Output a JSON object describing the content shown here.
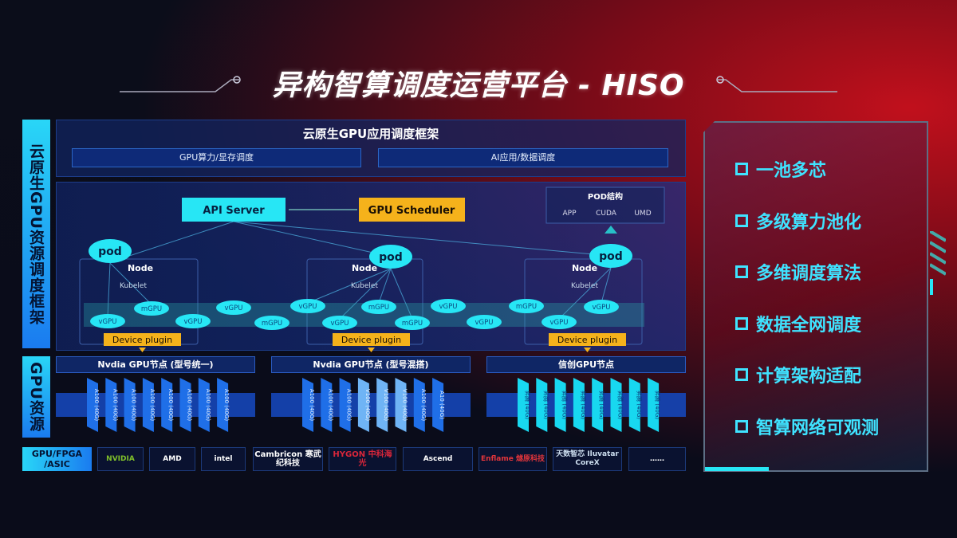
{
  "title": "异构智算调度运营平台 - HISO",
  "left_labels": {
    "framework": "云原生GPU资源调度框架",
    "resources": "GPU资源",
    "chips": "GPU/FPGA /ASIC"
  },
  "app_framework": {
    "title": "云原生GPU应用调度框架",
    "sub": [
      "GPU算力/显存调度",
      "AI应用/数据调度"
    ]
  },
  "diagram": {
    "api_server": "API Server",
    "gpu_scheduler": "GPU Scheduler",
    "pod_structure": {
      "title": "POD结构",
      "items": [
        "APP",
        "CUDA",
        "UMD"
      ]
    },
    "pod": "pod",
    "node": "Node",
    "kubelet": "Kubelet",
    "device_plugin": "Device plugin",
    "gpu_units": [
      "vGPU",
      "mGPU",
      "vGPU",
      "vGPU",
      "mGPU",
      "vGPU",
      "vGPU",
      "mGPU",
      "mGPU",
      "vGPU",
      "vGPU",
      "mGPU",
      "vGPU",
      "vGPU"
    ]
  },
  "gpu_nodes": [
    {
      "title": "Nvdia GPU节点 (型号统一)",
      "cards": [
        "A100 (40G)",
        "A100 (40G)",
        "A100 (40G)",
        "A100 (40G)",
        "A100 (40G)",
        "A100 (40G)",
        "A100 (40G)",
        "A100 (40G)"
      ],
      "color": "#1f6fe8"
    },
    {
      "title": "Nvdia GPU节点 (型号混搭)",
      "cards": [
        "A100 (40G)",
        "A100 (40G)",
        "A100 (40G)",
        "V100 (40G)",
        "V100 (40G)",
        "V100 (40G)",
        "A100 (40G)",
        "A10 (40G)"
      ],
      "color": "#1f6fe8"
    },
    {
      "title": "信创GPU节点",
      "cards": [
        "昇腾 (40G)",
        "昇腾 (40G)",
        "昇腾 (40G)",
        "昇腾 (40G)",
        "昇腾 (40G)",
        "昇腾 (40G)",
        "昇腾 (40G)",
        "昇腾 (40G)"
      ],
      "color": "#18d8f0"
    }
  ],
  "vendors": [
    "NVIDIA",
    "AMD",
    "intel",
    "Cambricon 寒武纪科技",
    "HYGON 中科海光",
    "Ascend",
    "Enflame 燧原科技",
    "天数智芯 Iluvatar CoreX",
    "……"
  ],
  "features": [
    "一池多芯",
    "多级算力池化",
    "多维调度算法",
    "数据全网调度",
    "计算架构适配",
    "智算网络可观测"
  ],
  "colors": {
    "cyan": "#27e6f5",
    "yellow": "#f5b21b",
    "panel": "#12246a"
  }
}
